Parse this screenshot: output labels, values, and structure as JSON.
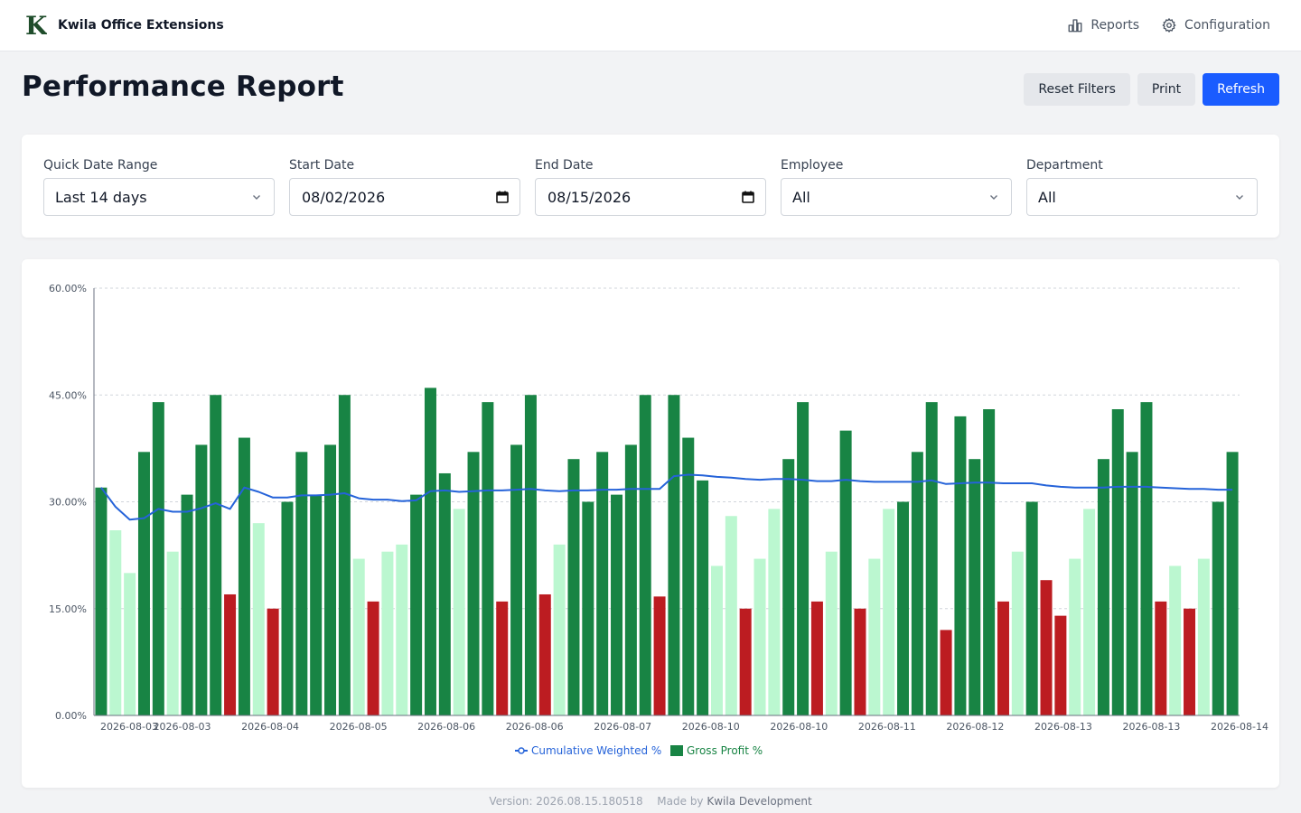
{
  "app": {
    "brand_name": "Kwila Office Extensions",
    "logo_letter": "K",
    "nav": [
      {
        "label": "Reports",
        "icon": "bar-chart-icon"
      },
      {
        "label": "Configuration",
        "icon": "gear-icon"
      }
    ]
  },
  "page": {
    "title": "Performance Report",
    "actions": {
      "reset_label": "Reset Filters",
      "print_label": "Print",
      "refresh_label": "Refresh"
    }
  },
  "filters": {
    "quick_range": {
      "label": "Quick Date Range",
      "value": "Last 14 days"
    },
    "start_date": {
      "label": "Start Date",
      "value": "08/02/2026"
    },
    "end_date": {
      "label": "End Date",
      "value": "08/15/2026"
    },
    "employee": {
      "label": "Employee",
      "value": "All"
    },
    "department": {
      "label": "Department",
      "value": "All"
    }
  },
  "colors": {
    "primary": "#1a5cff",
    "bar_high": "#188444",
    "bar_mid": "#bbf7d0",
    "bar_low": "#bc1c21",
    "line": "#2563d9"
  },
  "chart_data": {
    "type": "bar",
    "yticks": [
      "0.00%",
      "15.00%",
      "30.00%",
      "45.00%",
      "60.00%"
    ],
    "ylim": [
      0,
      60
    ],
    "grid": true,
    "legend_position": "bottom",
    "xtick_labels": [
      "2026-08-03",
      "2026-08-03",
      "2026-08-04",
      "2026-08-05",
      "2026-08-06",
      "2026-08-06",
      "2026-08-07",
      "2026-08-10",
      "2026-08-10",
      "2026-08-11",
      "2026-08-12",
      "2026-08-13",
      "2026-08-13",
      "2026-08-14"
    ],
    "series": [
      {
        "name": "Gross Profit %",
        "kind": "bar",
        "values": [
          32,
          26,
          20,
          37,
          44,
          23,
          31,
          38,
          45,
          17,
          39,
          27,
          15,
          30,
          37,
          31,
          38,
          45,
          22,
          16,
          23,
          24,
          31,
          46,
          34,
          29,
          37,
          44,
          16,
          38,
          45,
          17,
          24,
          36,
          30,
          37,
          31,
          38,
          45,
          16.7,
          45,
          39,
          33,
          21,
          28,
          15,
          22,
          29,
          36,
          44,
          16,
          23,
          40,
          15,
          22,
          29,
          30,
          37,
          44,
          12,
          42,
          36,
          43,
          16,
          23,
          30,
          19,
          14,
          22,
          29,
          36,
          43,
          37,
          44,
          16,
          21,
          15,
          22,
          30,
          37
        ]
      },
      {
        "name": "Cumulative Weighted %",
        "kind": "line",
        "values": [
          32,
          29.3,
          27.5,
          27.7,
          29,
          28.6,
          28.6,
          29.1,
          29.8,
          29,
          32,
          31.4,
          30.6,
          30.6,
          30.9,
          30.9,
          31,
          31.2,
          30.5,
          30.3,
          30.3,
          30.1,
          30.2,
          31.5,
          31.6,
          31.4,
          31.5,
          31.6,
          31.6,
          31.7,
          31.8,
          31.6,
          31.5,
          31.6,
          31.6,
          31.7,
          31.7,
          31.8,
          31.8,
          31.8,
          33.6,
          33.8,
          33.7,
          33.5,
          33.4,
          33.2,
          33.1,
          33.2,
          33.2,
          33.1,
          32.9,
          32.9,
          33.1,
          32.9,
          32.8,
          32.8,
          32.8,
          32.8,
          33,
          32.5,
          32.6,
          32.7,
          32.7,
          32.6,
          32.6,
          32.6,
          32.3,
          32.1,
          32,
          32,
          32,
          32.1,
          32.1,
          32.1,
          32,
          31.9,
          31.8,
          31.8,
          31.7,
          31.7
        ]
      }
    ]
  },
  "footer": {
    "version_text": "Version: 2026.08.15.180518",
    "made_by_label": "Made by",
    "developer": "Kwila Development"
  }
}
